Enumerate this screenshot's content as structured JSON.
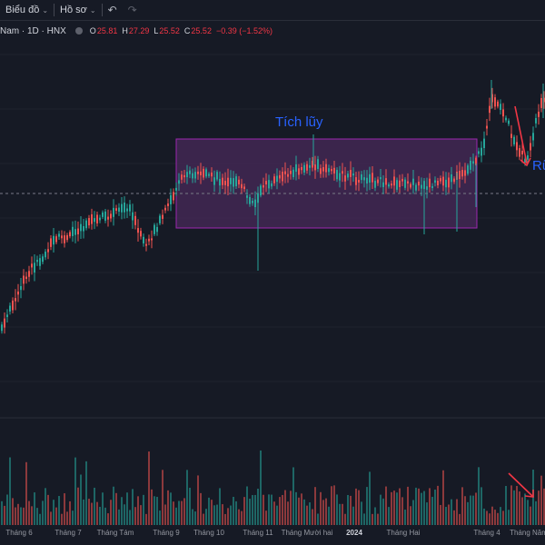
{
  "toolbar": {
    "chart_menu": "Biểu đồ",
    "profile_menu": "Hồ sơ",
    "undo_icon": "undo-icon",
    "redo_icon": "redo-icon"
  },
  "symbol": {
    "name": "Nam · 1D · HNX",
    "open_label": "O",
    "open": "25.81",
    "high_label": "H",
    "high": "27.29",
    "low_label": "L",
    "low": "25.52",
    "close_label": "C",
    "close": "25.52",
    "change": "−0.39 (−1.52%)"
  },
  "annotations": {
    "accumulation": "Tích lũy",
    "right_note": "Rũ"
  },
  "colors": {
    "up": "#26a69a",
    "down": "#ef5350",
    "zone_fill": "#4a2a5c",
    "zone_border": "#9c27b0",
    "annotation_text": "#2962ff",
    "arrow": "#f23645"
  },
  "time_axis": [
    "Tháng 6",
    "Tháng 7",
    "Tháng Tám",
    "Tháng 9",
    "Tháng 10",
    "Tháng 11",
    "Tháng Mười hai",
    "2024",
    "Tháng Hai",
    "Tháng 4",
    "Tháng Năm"
  ]
}
